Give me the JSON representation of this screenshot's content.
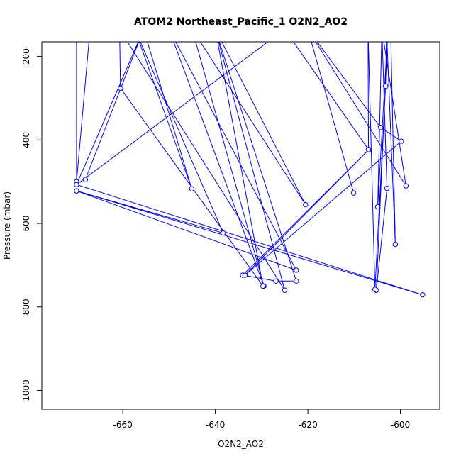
{
  "chart_data": {
    "type": "line",
    "title": "ATOM2 Northeast_Pacific_1 O2N2_AO2",
    "xlabel": "O2N2_AO2",
    "ylabel": "Pressure (mbar)",
    "xlim": [
      -677.5,
      -591.5
    ],
    "ylim": [
      1045,
      165
    ],
    "y_reversed": true,
    "xticks": [
      "-660",
      "-640",
      "-620",
      "-600"
    ],
    "xtick_values": [
      -660,
      -640,
      -620,
      -600
    ],
    "yticks": [
      "200",
      "400",
      "600",
      "800",
      "1000"
    ],
    "ytick_values": [
      200,
      400,
      600,
      800,
      1000
    ],
    "series_color": "#0000ff",
    "series": [
      {
        "points": [
          [
            -666.8,
            100
          ],
          [
            -670,
            500
          ],
          [
            -670,
            135
          ],
          [
            -670,
            507
          ],
          [
            -655.5,
            135
          ],
          [
            -668.1,
            495
          ],
          [
            -655.5,
            135
          ],
          [
            -645.1,
            517
          ],
          [
            -657.4,
            135
          ],
          [
            -638.3,
            623
          ],
          [
            -670,
            522
          ],
          [
            -622.5,
            712
          ],
          [
            -650,
            135
          ],
          [
            -629.5,
            750
          ],
          [
            -645,
            135
          ],
          [
            -620.5,
            555
          ],
          [
            -640,
            135
          ],
          [
            -625,
            760
          ],
          [
            -660.7,
            135
          ],
          [
            -660.5,
            276
          ],
          [
            -629.7,
            750
          ],
          [
            -640,
            135
          ],
          [
            -622.5,
            738
          ],
          [
            -626.9,
            738
          ],
          [
            -634.1,
            724
          ],
          [
            -606.8,
            423
          ],
          [
            -633.6,
            724
          ],
          [
            -599.8,
            403
          ],
          [
            -604.3,
            370
          ],
          [
            -620,
            135
          ],
          [
            -610.1,
            527
          ],
          [
            -620,
            135
          ],
          [
            -598.8,
            510
          ],
          [
            -604,
            135
          ],
          [
            -602.9,
            516
          ],
          [
            -605.2,
            760
          ],
          [
            -602.7,
            135
          ],
          [
            -604.9,
            560
          ],
          [
            -604,
            135
          ],
          [
            -602.1,
            135
          ],
          [
            -601.1,
            650
          ],
          [
            -603,
            135
          ],
          [
            -603.2,
            271
          ],
          [
            -605.5,
            758
          ],
          [
            -607,
            135
          ],
          [
            -606.9,
            423
          ],
          [
            -625,
            135
          ],
          [
            -670,
            507
          ],
          [
            -595.2,
            771
          ],
          [
            -670,
            522
          ]
        ]
      }
    ]
  }
}
